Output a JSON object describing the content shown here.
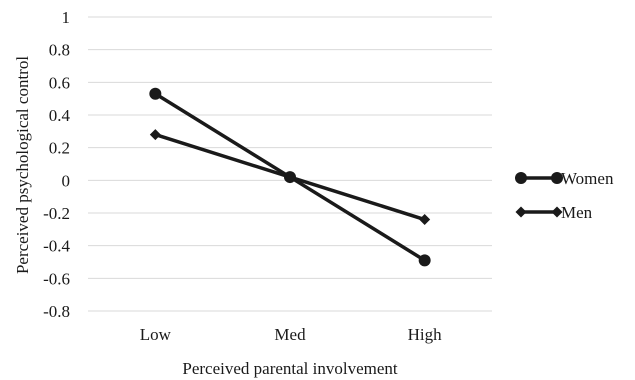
{
  "chart_data": {
    "type": "line",
    "title": "",
    "xlabel": "Perceived parental involvement",
    "ylabel": "Perceived psychological control",
    "categories": [
      "Low",
      "Med",
      "High"
    ],
    "ylim": [
      -0.8,
      1
    ],
    "yticks": [
      1,
      0.8,
      0.6,
      0.4,
      0.2,
      0,
      -0.2,
      -0.4,
      -0.6,
      -0.8
    ],
    "ytick_labels": [
      "1",
      "0.8",
      "0.6",
      "0.4",
      "0.2",
      "0",
      "-0.2",
      "-0.4",
      "-0.6",
      "-0.8"
    ],
    "grid": true,
    "legend": "right",
    "series": [
      {
        "name": "Women",
        "marker": "circle",
        "color": "#1a1a1a",
        "values": [
          0.53,
          0.02,
          -0.49
        ]
      },
      {
        "name": "Men",
        "marker": "diamond",
        "color": "#1a1a1a",
        "values": [
          0.28,
          0.02,
          -0.24
        ]
      }
    ]
  }
}
